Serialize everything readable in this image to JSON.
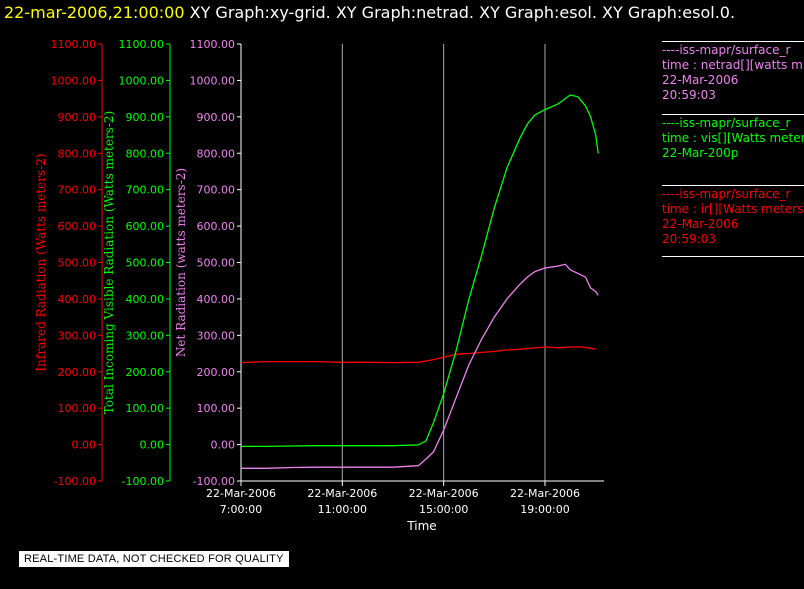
{
  "header": {
    "date": "22-mar-2006,21:00:00",
    "graphs": [
      "XY Graph:xy-grid.",
      "XY Graph:netrad.",
      "XY Graph:esol.",
      "XY Graph:esol.0."
    ]
  },
  "legend": [
    {
      "lines": [
        "----iss-mapr/surface_r",
        "time : netrad[][watts m",
        "22-Mar-2006",
        "20:59:03"
      ],
      "color": "#ee82ee"
    },
    {
      "lines": [
        "----iss-mapr/surface_r",
        "time : vis[][Watts meter",
        "22-Mar-200p"
      ],
      "color": "#00ff00"
    },
    {
      "lines": [
        "----iss-mapr/surface_r",
        "time : ir[][Watts meters",
        "22-Mar-2006",
        "20:59:03"
      ],
      "color": "#ff0000"
    }
  ],
  "notice": "REAL-TIME DATA, NOT CHECKED FOR QUALITY",
  "chart_data": {
    "type": "line",
    "xlabel": "Time",
    "x_ticks": [
      {
        "date": "22-Mar-2006",
        "time": "7:00:00",
        "hour": 7
      },
      {
        "date": "22-Mar-2006",
        "time": "11:00:00",
        "hour": 11
      },
      {
        "date": "22-Mar-2006",
        "time": "15:00:00",
        "hour": 15
      },
      {
        "date": "22-Mar-2006",
        "time": "19:00:00",
        "hour": 19
      }
    ],
    "xlim_hours": [
      7,
      21.2
    ],
    "ylim": [
      -100,
      1100
    ],
    "y_ticks": [
      "-100.00",
      "0.00",
      "100.00",
      "200.00",
      "300.00",
      "400.00",
      "500.00",
      "600.00",
      "700.00",
      "800.00",
      "900.00",
      "1000.00",
      "1100.00"
    ],
    "axes": [
      {
        "label": "Infrared Radiation (Watts meters-2)",
        "color": "#ff0000"
      },
      {
        "label": "Total Incoming Visible Radiation (Watts meters-2)",
        "color": "#00ff00"
      },
      {
        "label": "Net Radiation (watts meters-2)",
        "color": "#ee82ee"
      }
    ],
    "grid": "vertical",
    "series": [
      {
        "name": "ir",
        "color": "#ff0000",
        "hours": [
          7.0,
          8.0,
          9.0,
          10.0,
          11.0,
          12.0,
          13.0,
          14.0,
          14.5,
          15.0,
          15.5,
          16.0,
          16.5,
          17.0,
          17.5,
          18.0,
          18.5,
          19.0,
          19.5,
          20.0,
          20.5,
          21.0
        ],
        "values": [
          225,
          228,
          228,
          228,
          226,
          226,
          225,
          226,
          232,
          240,
          248,
          250,
          253,
          256,
          260,
          262,
          265,
          268,
          266,
          268,
          268,
          262
        ]
      },
      {
        "name": "vis",
        "color": "#00ff00",
        "hours": [
          7.0,
          8.0,
          9.0,
          10.0,
          11.0,
          12.0,
          13.0,
          14.0,
          14.3,
          14.6,
          15.0,
          15.5,
          16.0,
          16.5,
          17.0,
          17.5,
          18.0,
          18.3,
          18.6,
          19.0,
          19.5,
          19.8,
          20.0,
          20.3,
          20.6,
          20.8,
          21.0,
          21.1
        ],
        "values": [
          -5,
          -5,
          -4,
          -3,
          -3,
          -3,
          -3,
          -1,
          10,
          60,
          140,
          260,
          400,
          520,
          650,
          760,
          840,
          880,
          905,
          920,
          935,
          950,
          960,
          955,
          930,
          900,
          850,
          800
        ]
      },
      {
        "name": "netrad",
        "color": "#ee82ee",
        "hours": [
          7.0,
          8.0,
          9.0,
          10.0,
          11.0,
          12.0,
          13.0,
          14.0,
          14.3,
          14.6,
          15.0,
          15.5,
          16.0,
          16.5,
          17.0,
          17.5,
          18.0,
          18.3,
          18.6,
          19.0,
          19.5,
          19.8,
          20.0,
          20.3,
          20.6,
          20.8,
          21.0,
          21.1
        ],
        "values": [
          -65,
          -65,
          -63,
          -62,
          -62,
          -62,
          -62,
          -58,
          -40,
          -20,
          40,
          130,
          220,
          290,
          350,
          400,
          440,
          460,
          475,
          485,
          490,
          495,
          480,
          470,
          460,
          430,
          420,
          410
        ]
      }
    ]
  }
}
